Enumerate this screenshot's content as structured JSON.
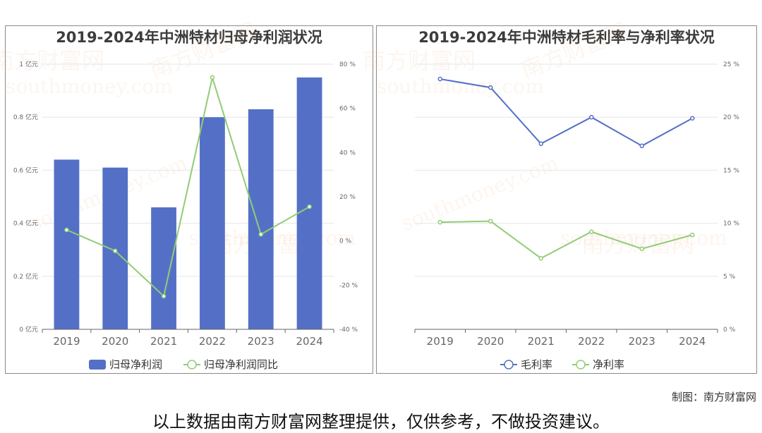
{
  "chart_data": [
    {
      "type": "bar",
      "title": "2019-2024年中洲特材归母净利润状况",
      "categories": [
        "2019",
        "2020",
        "2021",
        "2022",
        "2023",
        "2024"
      ],
      "series": [
        {
          "name": "归母净利润",
          "type": "bar",
          "axis": "left",
          "unit": "亿元",
          "values": [
            0.64,
            0.61,
            0.46,
            0.8,
            0.83,
            0.95
          ],
          "color": "#5470c6"
        },
        {
          "name": "归母净利润同比",
          "type": "line",
          "axis": "right",
          "unit": "%",
          "values": [
            5,
            -4.5,
            -25,
            74,
            3,
            15.5
          ],
          "color": "#91cc75"
        }
      ],
      "yAxisLeft": {
        "min": 0,
        "max": 1,
        "step": 0.2,
        "tickLabels": [
          "0 亿元",
          "0.2 亿元",
          "0.4 亿元",
          "0.6 亿元",
          "0.8 亿元",
          "1 亿元"
        ]
      },
      "yAxisRight": {
        "min": -40,
        "max": 80,
        "step": 20,
        "tickLabels": [
          "-40 %",
          "-20 %",
          "0 %",
          "20 %",
          "40 %",
          "60 %",
          "80 %"
        ]
      },
      "legend": "bottom-center",
      "grid": true
    },
    {
      "type": "line",
      "title": "2019-2024年中洲特材毛利率与净利率状况",
      "categories": [
        "2019",
        "2020",
        "2021",
        "2022",
        "2023",
        "2024"
      ],
      "series": [
        {
          "name": "毛利率",
          "unit": "%",
          "values": [
            23.6,
            22.8,
            17.5,
            20.0,
            17.3,
            19.9
          ],
          "color": "#5470c6"
        },
        {
          "name": "净利率",
          "unit": "%",
          "values": [
            10.1,
            10.2,
            6.7,
            9.2,
            7.6,
            8.9
          ],
          "color": "#91cc75"
        }
      ],
      "yAxisRight": {
        "min": 0,
        "max": 25,
        "step": 5,
        "tickLabels": [
          "0 %",
          "5 %",
          "10 %",
          "15 %",
          "20 %",
          "25 %"
        ]
      },
      "legend": "bottom-center",
      "grid": true
    }
  ],
  "watermark": {
    "cn": "南方财富网",
    "en": "southmoney.com"
  },
  "credit": "制图：南方财富网",
  "disclaimer": "以上数据由南方财富网整理提供，仅供参考，不做投资建议。",
  "colors": {
    "bar": "#5470c6",
    "line_green": "#91cc75",
    "line_blue": "#5470c6",
    "axis": "#666666",
    "grid": "#e6e6e6",
    "title": "#3c3c3c"
  }
}
